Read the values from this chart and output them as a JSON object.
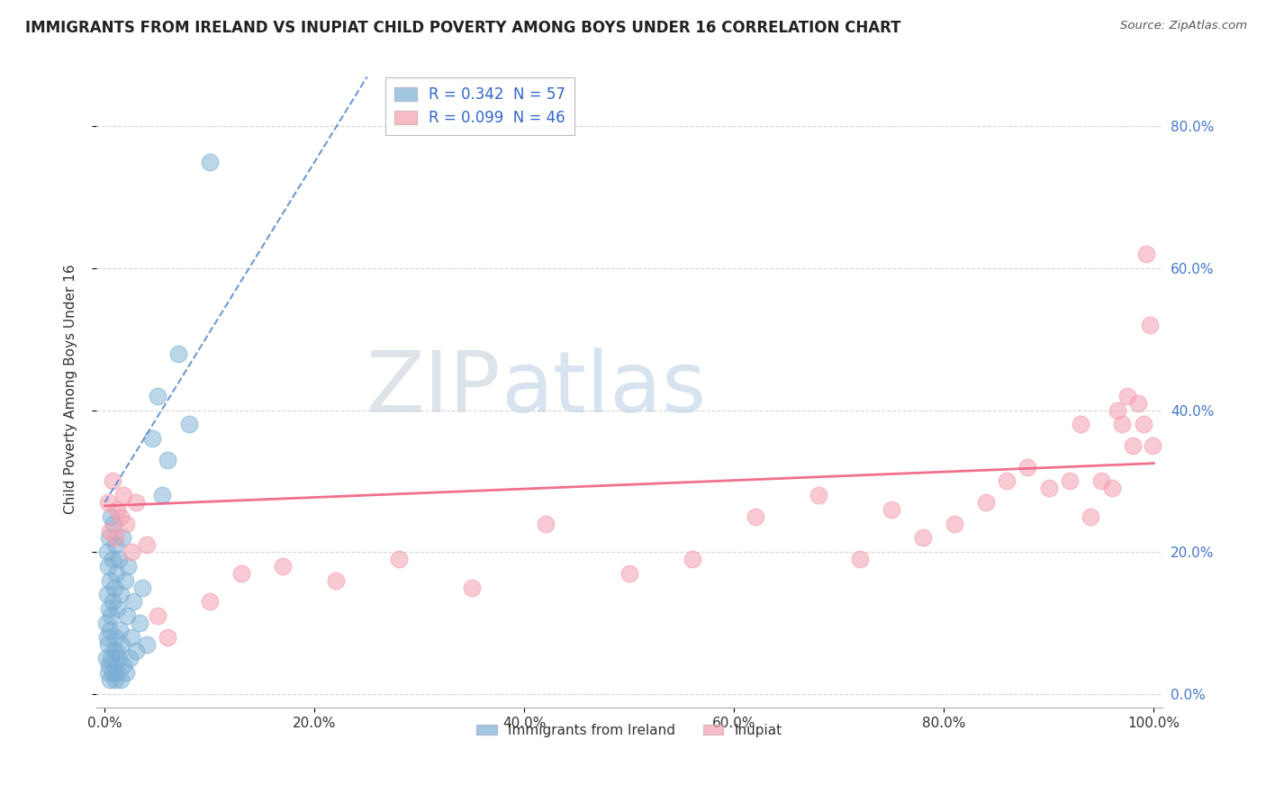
{
  "title": "IMMIGRANTS FROM IRELAND VS INUPIAT CHILD POVERTY AMONG BOYS UNDER 16 CORRELATION CHART",
  "source": "Source: ZipAtlas.com",
  "ylabel": "Child Poverty Among Boys Under 16",
  "blue_color": "#7bafd4",
  "pink_color": "#f4a0b0",
  "blue_line_color": "#5588cc",
  "pink_line_color": "#f06080",
  "watermark_zip": "ZIP",
  "watermark_atlas": "atlas",
  "blue_scatter_x": [
    0.001,
    0.001,
    0.002,
    0.002,
    0.002,
    0.003,
    0.003,
    0.003,
    0.004,
    0.004,
    0.004,
    0.005,
    0.005,
    0.005,
    0.006,
    0.006,
    0.006,
    0.007,
    0.007,
    0.007,
    0.008,
    0.008,
    0.009,
    0.009,
    0.01,
    0.01,
    0.01,
    0.011,
    0.011,
    0.012,
    0.012,
    0.013,
    0.013,
    0.014,
    0.015,
    0.015,
    0.016,
    0.017,
    0.018,
    0.019,
    0.02,
    0.021,
    0.022,
    0.024,
    0.025,
    0.027,
    0.03,
    0.033,
    0.036,
    0.04,
    0.045,
    0.05,
    0.055,
    0.06,
    0.07,
    0.08,
    0.1
  ],
  "blue_scatter_y": [
    0.05,
    0.1,
    0.08,
    0.14,
    0.2,
    0.03,
    0.07,
    0.18,
    0.04,
    0.12,
    0.22,
    0.02,
    0.09,
    0.16,
    0.05,
    0.11,
    0.25,
    0.03,
    0.13,
    0.19,
    0.06,
    0.24,
    0.04,
    0.15,
    0.02,
    0.08,
    0.21,
    0.06,
    0.17,
    0.03,
    0.12,
    0.05,
    0.19,
    0.09,
    0.02,
    0.14,
    0.07,
    0.22,
    0.04,
    0.16,
    0.03,
    0.11,
    0.18,
    0.05,
    0.08,
    0.13,
    0.06,
    0.1,
    0.15,
    0.07,
    0.36,
    0.42,
    0.28,
    0.33,
    0.48,
    0.38,
    0.75
  ],
  "pink_scatter_x": [
    0.003,
    0.005,
    0.007,
    0.01,
    0.012,
    0.015,
    0.018,
    0.02,
    0.025,
    0.03,
    0.04,
    0.05,
    0.06,
    0.1,
    0.13,
    0.17,
    0.22,
    0.28,
    0.35,
    0.42,
    0.5,
    0.56,
    0.62,
    0.68,
    0.72,
    0.75,
    0.78,
    0.81,
    0.84,
    0.86,
    0.88,
    0.9,
    0.92,
    0.93,
    0.94,
    0.95,
    0.96,
    0.965,
    0.97,
    0.975,
    0.98,
    0.985,
    0.99,
    0.993,
    0.996,
    0.999
  ],
  "pink_scatter_y": [
    0.27,
    0.23,
    0.3,
    0.22,
    0.26,
    0.25,
    0.28,
    0.24,
    0.2,
    0.27,
    0.21,
    0.11,
    0.08,
    0.13,
    0.17,
    0.18,
    0.16,
    0.19,
    0.15,
    0.24,
    0.17,
    0.19,
    0.25,
    0.28,
    0.19,
    0.26,
    0.22,
    0.24,
    0.27,
    0.3,
    0.32,
    0.29,
    0.3,
    0.38,
    0.25,
    0.3,
    0.29,
    0.4,
    0.38,
    0.42,
    0.35,
    0.41,
    0.38,
    0.62,
    0.52,
    0.35
  ],
  "blue_trend_x0": 0.0,
  "blue_trend_y0": 0.27,
  "blue_trend_x1": 0.25,
  "blue_trend_y1": 0.87,
  "pink_trend_x0": 0.0,
  "pink_trend_y0": 0.265,
  "pink_trend_x1": 1.0,
  "pink_trend_y1": 0.325,
  "xlim": [
    0.0,
    1.0
  ],
  "ylim": [
    0.0,
    0.88
  ],
  "x_ticks": [
    0.0,
    0.2,
    0.4,
    0.6,
    0.8,
    1.0
  ],
  "x_tick_labels": [
    "0.0%",
    "20.0%",
    "40.0%",
    "60.0%",
    "80.0%",
    "100.0%"
  ],
  "y_ticks": [
    0.0,
    0.2,
    0.4,
    0.6,
    0.8
  ],
  "y_tick_labels": [
    "0.0%",
    "20.0%",
    "40.0%",
    "60.0%",
    "80.0%"
  ],
  "legend1_label1": "R = 0.342  N = 57",
  "legend1_label2": "R = 0.099  N = 46",
  "legend2_label1": "Immigrants from Ireland",
  "legend2_label2": "Inupiat"
}
